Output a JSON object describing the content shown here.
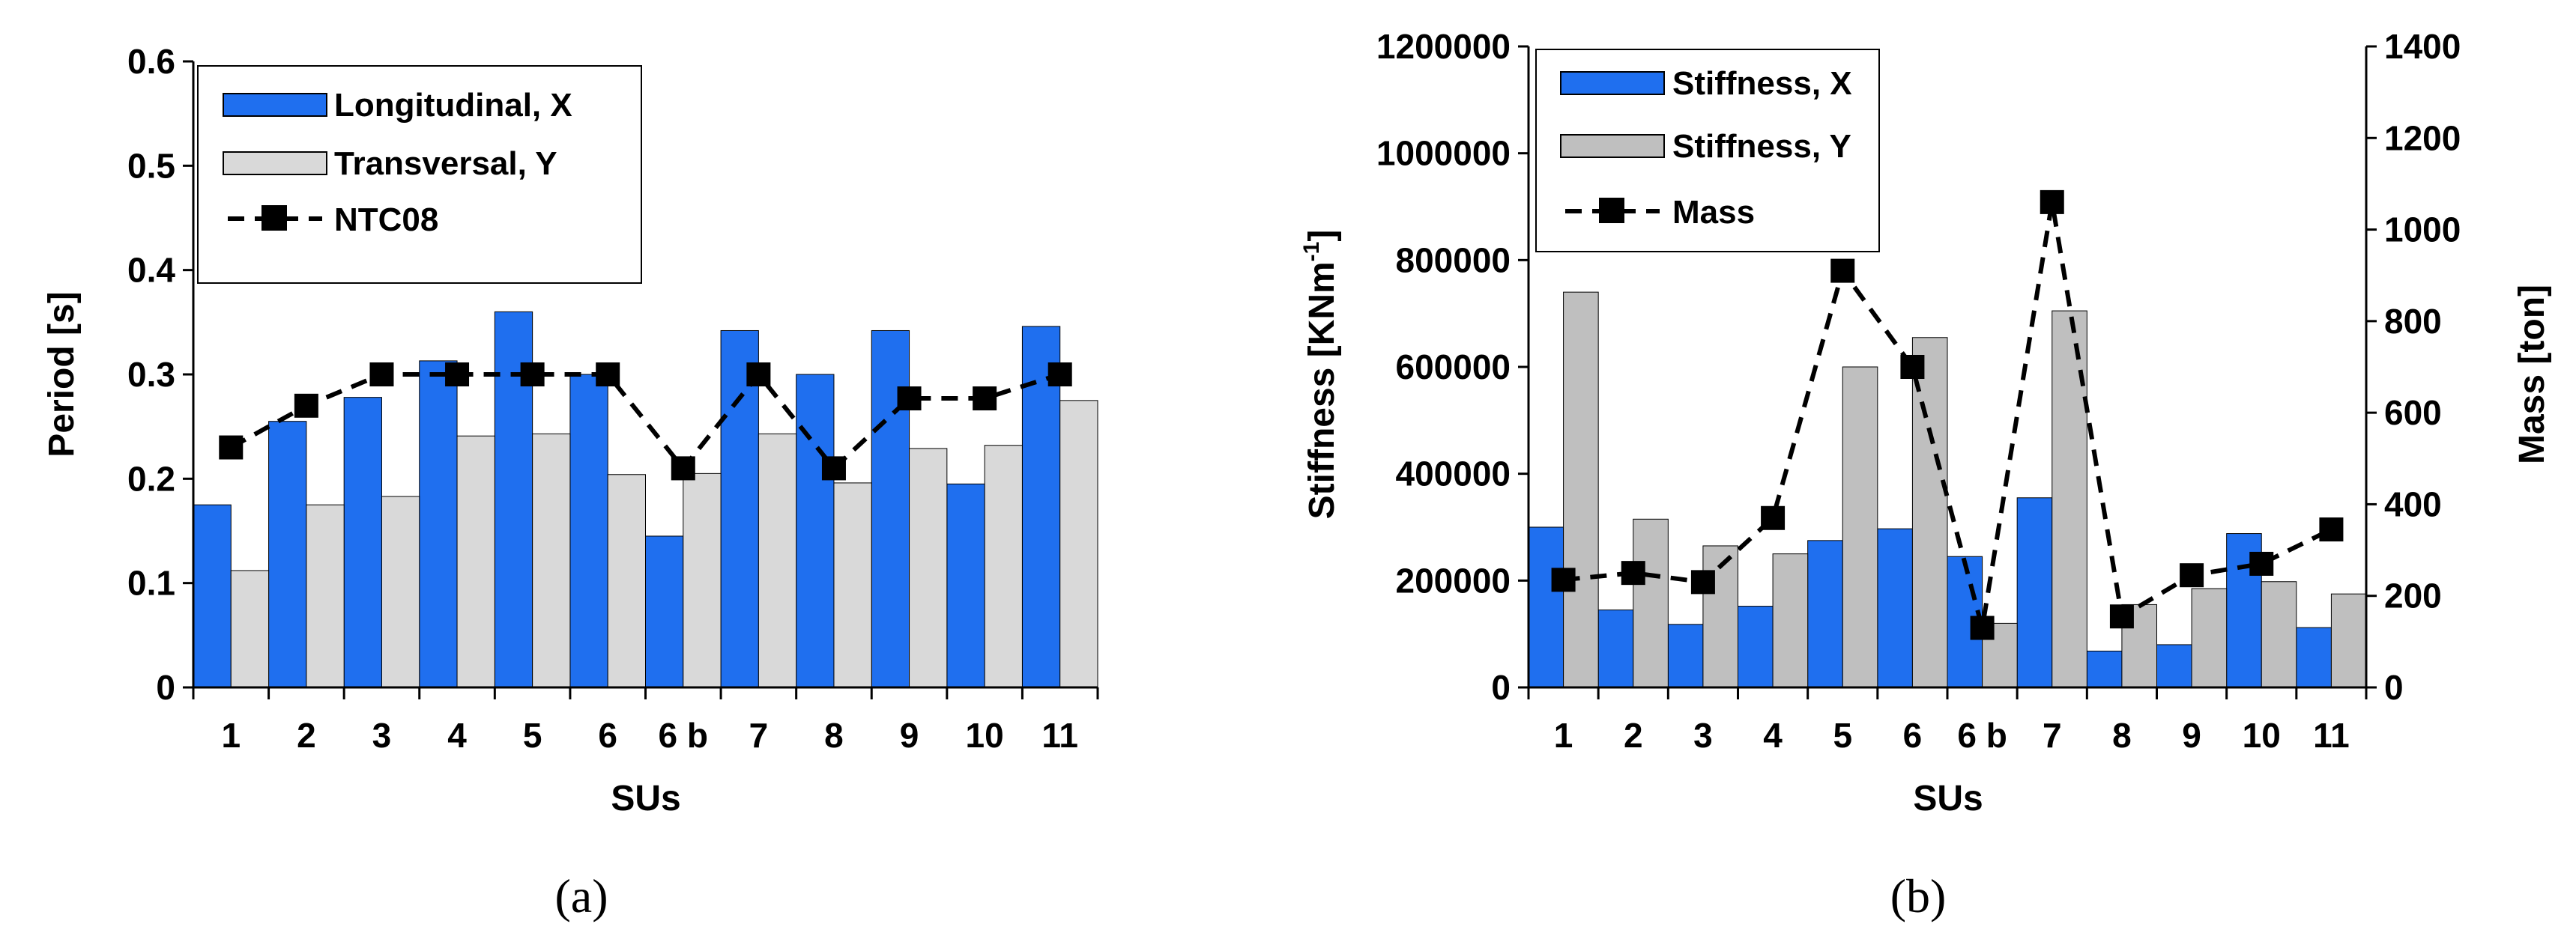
{
  "chart_data": [
    {
      "type": "bar",
      "panel_label": "(a)",
      "categories": [
        "1",
        "2",
        "3",
        "4",
        "5",
        "6",
        "6 b",
        "7",
        "8",
        "9",
        "10",
        "11"
      ],
      "series": [
        {
          "name": "Longitudinal, X",
          "kind": "bar",
          "color": "#1f6fef",
          "values": [
            0.175,
            0.255,
            0.278,
            0.313,
            0.36,
            0.3,
            0.145,
            0.342,
            0.3,
            0.342,
            0.195,
            0.346
          ]
        },
        {
          "name": "Transversal, Y",
          "kind": "bar",
          "color": "#d9d9d9",
          "values": [
            0.112,
            0.175,
            0.183,
            0.241,
            0.243,
            0.204,
            0.205,
            0.243,
            0.196,
            0.229,
            0.232,
            0.275
          ]
        },
        {
          "name": "NTC08",
          "kind": "line",
          "color": "#000000",
          "values": [
            0.23,
            0.27,
            0.3,
            0.3,
            0.3,
            0.3,
            0.21,
            0.3,
            0.21,
            0.277,
            0.277,
            0.3
          ]
        }
      ],
      "xlabel": "SUs",
      "ylabel": "Period [s]",
      "ylim": [
        0,
        0.6
      ],
      "yticks": [
        "0",
        "0.1",
        "0.2",
        "0.3",
        "0.4",
        "0.5",
        "0.6"
      ],
      "legend_position": "top-left"
    },
    {
      "type": "bar",
      "panel_label": "(b)",
      "categories": [
        "1",
        "2",
        "3",
        "4",
        "5",
        "6",
        "6 b",
        "7",
        "8",
        "9",
        "10",
        "11"
      ],
      "series": [
        {
          "name": "Stiffness, X",
          "kind": "bar",
          "color": "#1f6fef",
          "axis": "left",
          "values": [
            300000,
            145000,
            118000,
            152000,
            275000,
            297000,
            245000,
            355000,
            68000,
            80000,
            288000,
            112000
          ]
        },
        {
          "name": "Stiffness, Y",
          "kind": "bar",
          "color": "#bfbfbf",
          "axis": "left",
          "values": [
            740000,
            315000,
            265000,
            250000,
            600000,
            655000,
            120000,
            705000,
            155000,
            185000,
            198000,
            175000
          ]
        },
        {
          "name": "Mass",
          "kind": "line",
          "color": "#000000",
          "axis": "right",
          "values": [
            235,
            250,
            230,
            370,
            910,
            700,
            130,
            1060,
            155,
            245,
            270,
            345
          ]
        }
      ],
      "xlabel": "SUs",
      "ylabel": "Stiffness [KNm-1]",
      "ylabel_main": "Stiffness [KNm",
      "ylabel_sup": "-1",
      "ylabel_end": "]",
      "ylim": [
        0,
        1200000
      ],
      "yticks": [
        "0",
        "200000",
        "400000",
        "600000",
        "800000",
        "1000000",
        "1200000"
      ],
      "y2label": "Mass [ton]",
      "y2lim": [
        0,
        1400
      ],
      "y2ticks": [
        "0",
        "200",
        "400",
        "600",
        "800",
        "1000",
        "1200",
        "1400"
      ],
      "legend_position": "top-left"
    }
  ]
}
